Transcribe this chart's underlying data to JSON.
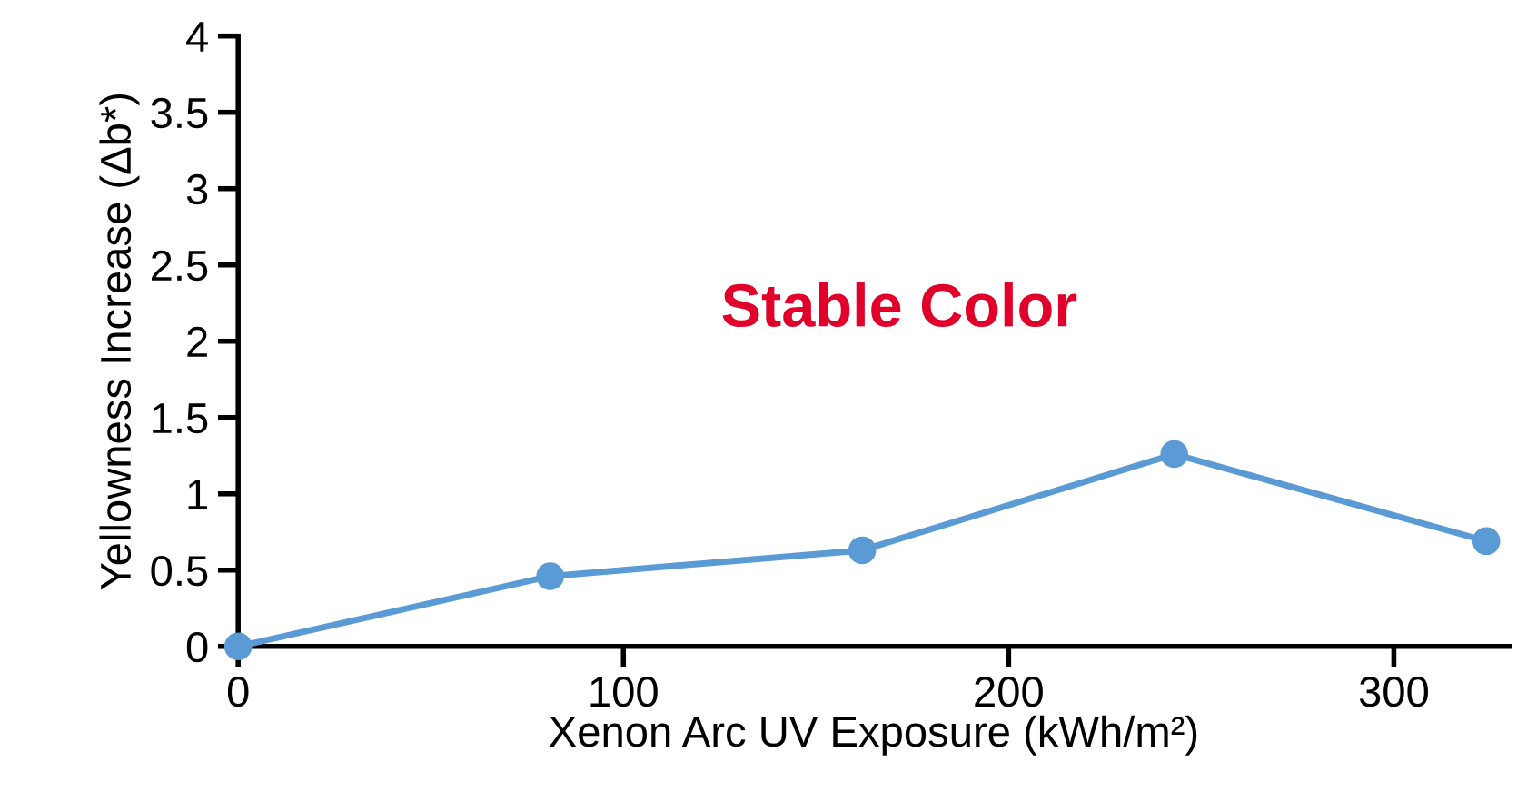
{
  "chart_data": {
    "type": "line",
    "xlabel": "Xenon Arc UV Exposure (kWh/m²)",
    "ylabel": "Yellowness Increase (Δb*)",
    "x": [
      0,
      81,
      162,
      243,
      324
    ],
    "series": [
      {
        "color": "#5b9bd5",
        "values": [
          0,
          0.46,
          0.63,
          1.26,
          0.69
        ]
      }
    ],
    "xlim": [
      0,
      330
    ],
    "xticks": [
      0,
      100,
      200,
      300
    ],
    "ylim": [
      0,
      4
    ],
    "yticks": [
      0,
      0.5,
      1,
      1.5,
      2,
      2.5,
      3,
      3.5,
      4
    ],
    "marker": "circle",
    "line_style": "solid",
    "grid": false,
    "legend": false,
    "annotations": [
      "Stable Color"
    ]
  }
}
